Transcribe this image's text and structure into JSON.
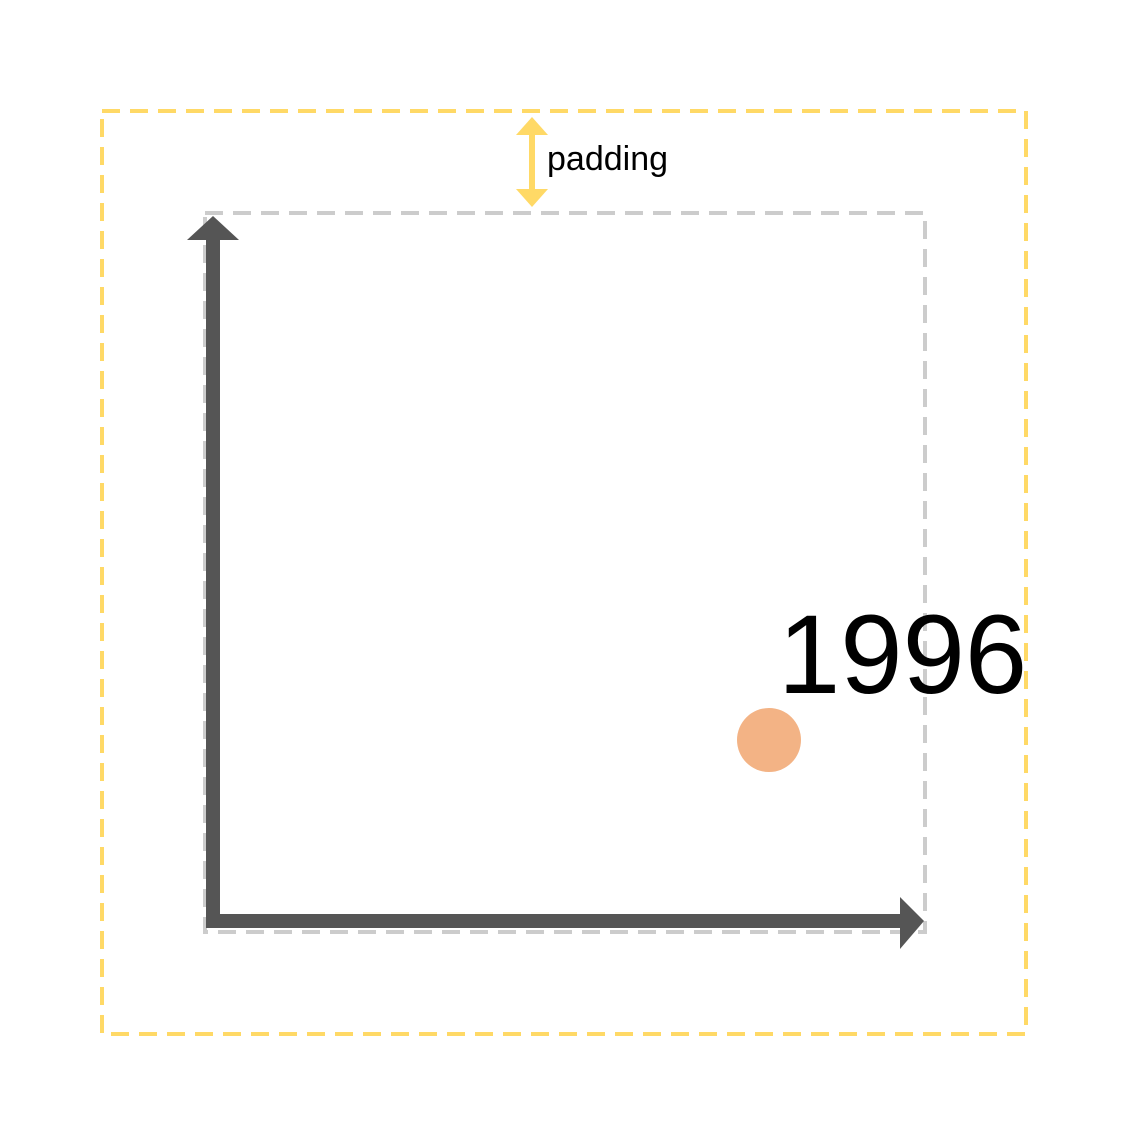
{
  "diagram": {
    "padding_label": "padding",
    "year_label": "1996",
    "colors": {
      "outer_border": "#FFD966",
      "inner_border": "#CCCCCC",
      "axis": "#555555",
      "point": "#F3B385",
      "padding_arrow": "#FFD966",
      "text": "#000000"
    }
  }
}
